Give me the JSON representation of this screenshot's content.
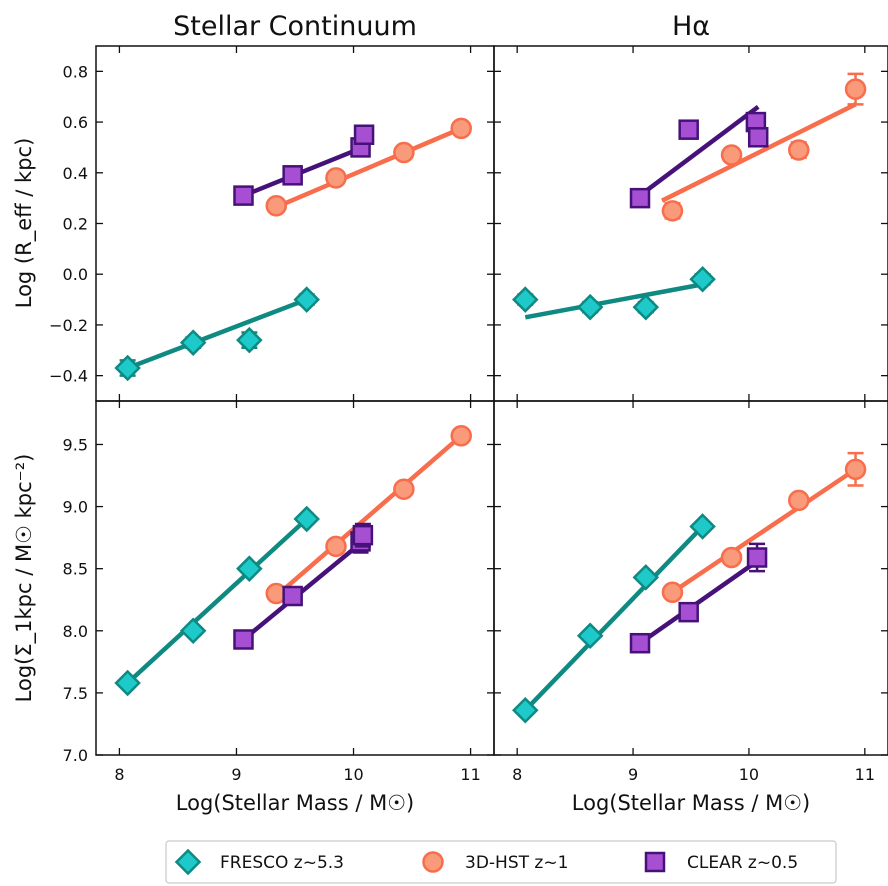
{
  "figure": {
    "column_titles": [
      "Stellar Continuum",
      "Hα"
    ],
    "xlabel": "Log(Stellar Mass / M☉)",
    "ylabel_top": "Log (R_eff / kpc)",
    "ylabel_bottom": "Log(Σ_1kpc / M☉ kpc⁻²)"
  },
  "colors": {
    "FRESCO": "#1ec9c9",
    "FRESCO_edge": "#0f8a82",
    "FRESCO_line": "#0f8a82",
    "3DHST": "#f99a7a",
    "3DHST_edge": "#f86d4c",
    "3DHST_line": "#f86d4c",
    "CLEAR": "#a64fd2",
    "CLEAR_edge": "#46127a",
    "CLEAR_line": "#46127a"
  },
  "legend": [
    {
      "key": "FRESCO",
      "label": "FRESCO z~5.3",
      "marker": "diamond"
    },
    {
      "key": "3DHST",
      "label": "3D-HST z~1",
      "marker": "circle"
    },
    {
      "key": "CLEAR",
      "label": "CLEAR z~0.5",
      "marker": "square"
    }
  ],
  "chart_data": [
    {
      "type": "scatter",
      "panel": "top-left",
      "title": "Stellar Continuum",
      "ylabel": "Log (R_eff / kpc)",
      "xlim": [
        7.8,
        11.2
      ],
      "ylim": [
        -0.5,
        0.9
      ],
      "xticks": [
        8,
        9,
        10,
        11
      ],
      "yticks": [
        -0.4,
        -0.2,
        0.0,
        0.2,
        0.4,
        0.6,
        0.8
      ],
      "yticklabels": [
        "−0.4",
        "−0.2",
        "0.0",
        "0.2",
        "0.4",
        "0.6",
        "0.8"
      ],
      "series": [
        {
          "key": "FRESCO",
          "x": [
            8.07,
            8.63,
            9.11,
            9.6
          ],
          "y": [
            -0.37,
            -0.27,
            -0.26,
            -0.1
          ],
          "yerr": [
            0.03,
            0.02,
            0.03,
            0.02
          ],
          "fit": [
            [
              8.07,
              -0.37
            ],
            [
              9.6,
              -0.1
            ]
          ]
        },
        {
          "key": "3DHST",
          "x": [
            9.34,
            9.85,
            10.43,
            10.92
          ],
          "y": [
            0.27,
            0.38,
            0.48,
            0.575
          ],
          "yerr": [
            0.01,
            0.01,
            0.01,
            0.01
          ],
          "fit": [
            [
              9.34,
              0.265
            ],
            [
              10.92,
              0.575
            ]
          ]
        },
        {
          "key": "CLEAR",
          "x": [
            9.06,
            9.48,
            10.06,
            10.09
          ],
          "y": [
            0.31,
            0.39,
            0.5,
            0.55
          ],
          "yerr": [
            0.02,
            0.02,
            0.03,
            0.03
          ],
          "fit": [
            [
              9.06,
              0.31
            ],
            [
              10.08,
              0.5
            ]
          ]
        }
      ]
    },
    {
      "type": "scatter",
      "panel": "top-right",
      "title": "Hα",
      "xlim": [
        7.8,
        11.2
      ],
      "ylim": [
        -0.5,
        0.9
      ],
      "xticks": [
        8,
        9,
        10,
        11
      ],
      "yticks": [
        -0.4,
        -0.2,
        0.0,
        0.2,
        0.4,
        0.6,
        0.8
      ],
      "series": [
        {
          "key": "FRESCO",
          "x": [
            8.07,
            8.63,
            9.11,
            9.6
          ],
          "y": [
            -0.1,
            -0.13,
            -0.13,
            -0.02
          ],
          "yerr": [
            0.02,
            0.02,
            0.02,
            0.02
          ],
          "fit": [
            [
              8.07,
              -0.17
            ],
            [
              9.6,
              -0.04
            ]
          ]
        },
        {
          "key": "3DHST",
          "x": [
            9.34,
            9.85,
            10.43,
            10.92
          ],
          "y": [
            0.25,
            0.47,
            0.49,
            0.73
          ],
          "yerr": [
            0.03,
            0.02,
            0.03,
            0.06
          ],
          "fit": [
            [
              9.25,
              0.29
            ],
            [
              10.92,
              0.67
            ]
          ]
        },
        {
          "key": "CLEAR",
          "x": [
            9.06,
            9.48,
            10.06,
            10.08
          ],
          "y": [
            0.3,
            0.57,
            0.6,
            0.54
          ],
          "yerr": [
            0.02,
            0.02,
            0.03,
            0.03
          ],
          "fit": [
            [
              9.0,
              0.29
            ],
            [
              10.08,
              0.66
            ]
          ]
        }
      ]
    },
    {
      "type": "scatter",
      "panel": "bottom-left",
      "ylabel": "Log(Σ_1kpc / M☉ kpc⁻²)",
      "xlabel": "Log(Stellar Mass / M☉)",
      "xlim": [
        7.8,
        11.2
      ],
      "ylim": [
        7.0,
        9.85
      ],
      "xticks": [
        8,
        9,
        10,
        11
      ],
      "yticks": [
        7.0,
        7.5,
        8.0,
        8.5,
        9.0,
        9.5
      ],
      "yticklabels": [
        "7.0",
        "7.5",
        "8.0",
        "8.5",
        "9.0",
        "9.5"
      ],
      "series": [
        {
          "key": "FRESCO",
          "x": [
            8.07,
            8.63,
            9.11,
            9.6
          ],
          "y": [
            7.58,
            8.0,
            8.5,
            8.9
          ],
          "yerr": [
            0.01,
            0.01,
            0.02,
            0.02
          ],
          "fit": [
            [
              8.07,
              7.58
            ],
            [
              9.6,
              8.9
            ]
          ]
        },
        {
          "key": "3DHST",
          "x": [
            9.34,
            9.85,
            10.43,
            10.92
          ],
          "y": [
            8.3,
            8.68,
            9.14,
            9.57
          ],
          "yerr": [
            0.01,
            0.01,
            0.02,
            0.02
          ],
          "fit": [
            [
              9.34,
              8.28
            ],
            [
              10.92,
              9.57
            ]
          ]
        },
        {
          "key": "CLEAR",
          "x": [
            9.06,
            9.48,
            10.06,
            10.08
          ],
          "y": [
            7.93,
            8.28,
            8.72,
            8.77
          ],
          "yerr": [
            0.02,
            0.02,
            0.09,
            0.09
          ],
          "fit": [
            [
              9.06,
              7.93
            ],
            [
              10.08,
              8.72
            ]
          ]
        }
      ]
    },
    {
      "type": "scatter",
      "panel": "bottom-right",
      "xlabel": "Log(Stellar Mass / M☉)",
      "xlim": [
        7.8,
        11.2
      ],
      "ylim": [
        7.0,
        9.85
      ],
      "xticks": [
        8,
        9,
        10,
        11
      ],
      "yticks": [
        7.0,
        7.5,
        8.0,
        8.5,
        9.0,
        9.5
      ],
      "series": [
        {
          "key": "FRESCO",
          "x": [
            8.07,
            8.63,
            9.11,
            9.6
          ],
          "y": [
            7.36,
            7.96,
            8.43,
            8.84
          ],
          "yerr": [
            0.01,
            0.01,
            0.02,
            0.02
          ],
          "fit": [
            [
              8.07,
              7.36
            ],
            [
              9.6,
              8.84
            ]
          ]
        },
        {
          "key": "3DHST",
          "x": [
            9.34,
            9.85,
            10.43,
            10.92
          ],
          "y": [
            8.31,
            8.59,
            9.05,
            9.3
          ],
          "yerr": [
            0.02,
            0.02,
            0.04,
            0.13
          ],
          "fit": [
            [
              9.34,
              8.31
            ],
            [
              10.92,
              9.3
            ]
          ]
        },
        {
          "key": "CLEAR",
          "x": [
            9.06,
            9.48,
            10.07
          ],
          "y": [
            7.9,
            8.15,
            8.59
          ],
          "yerr": [
            0.02,
            0.02,
            0.11
          ],
          "fit": [
            [
              9.06,
              7.9
            ],
            [
              10.07,
              8.56
            ]
          ]
        }
      ]
    }
  ]
}
